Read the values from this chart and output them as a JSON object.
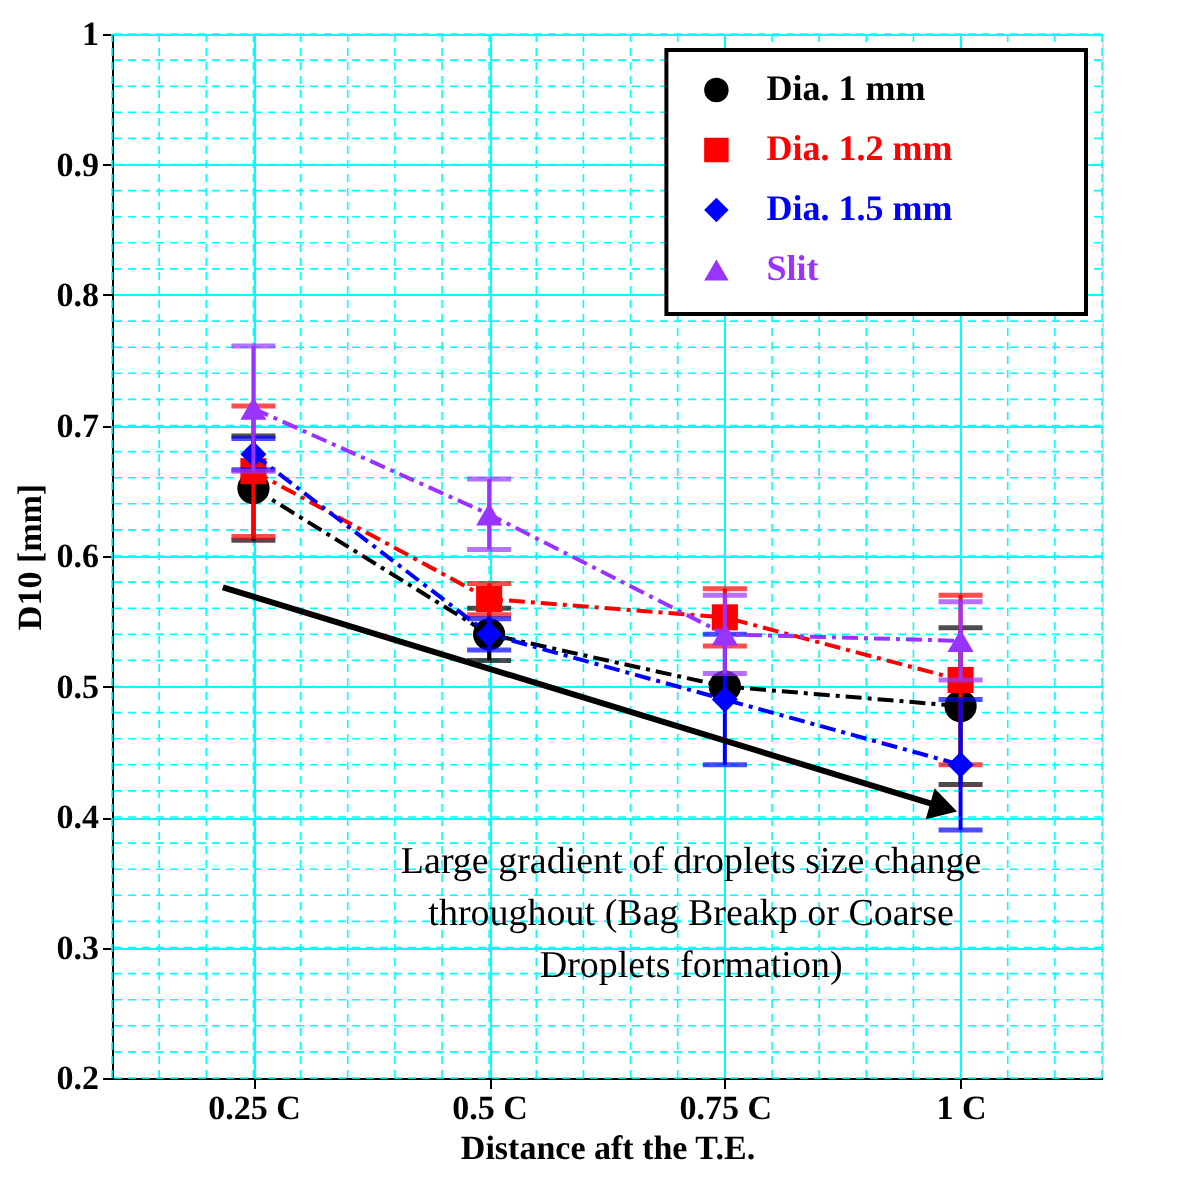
{
  "chart_data": {
    "type": "line",
    "xlabel": "Distance aft the T.E.",
    "ylabel": "D10 [mm]",
    "categories": [
      "0.25 C",
      "0.5 C",
      "0.75 C",
      "1 C"
    ],
    "ylim": [
      0.2,
      1
    ],
    "yticks": [
      0.2,
      0.3,
      0.4,
      0.5,
      0.6,
      0.7,
      0.8,
      0.9,
      1
    ],
    "grid": true,
    "legend": "top right",
    "line_style": "dashed",
    "series": [
      {
        "name": "Dia. 1 mm",
        "color": "#000000",
        "marker": "circle",
        "values": [
          0.652,
          0.54,
          0.5,
          0.485
        ],
        "errors": [
          0.04,
          0.02,
          null,
          0.06
        ]
      },
      {
        "name": "Dia. 1.2 mm",
        "color": "#ff0000",
        "marker": "square",
        "values": [
          0.665,
          0.567,
          0.553,
          0.505
        ],
        "errors": [
          0.05,
          0.012,
          0.022,
          0.065
        ]
      },
      {
        "name": "Dia. 1.5 mm",
        "color": "#0000ff",
        "marker": "diamond",
        "values": [
          0.678,
          0.54,
          0.49,
          0.44
        ],
        "errors": [
          0.012,
          0.012,
          0.05,
          0.05
        ]
      },
      {
        "name": "Slit",
        "color": "#9933ff",
        "marker": "triangle",
        "values": [
          0.713,
          0.632,
          0.54,
          0.535
        ],
        "errors": [
          0.048,
          0.027,
          0.03,
          0.03
        ]
      }
    ],
    "annotations": [
      "Large gradient of droplets size change\nthroughout (Bag Breakp or Coarse\nDroplets formation)"
    ]
  }
}
